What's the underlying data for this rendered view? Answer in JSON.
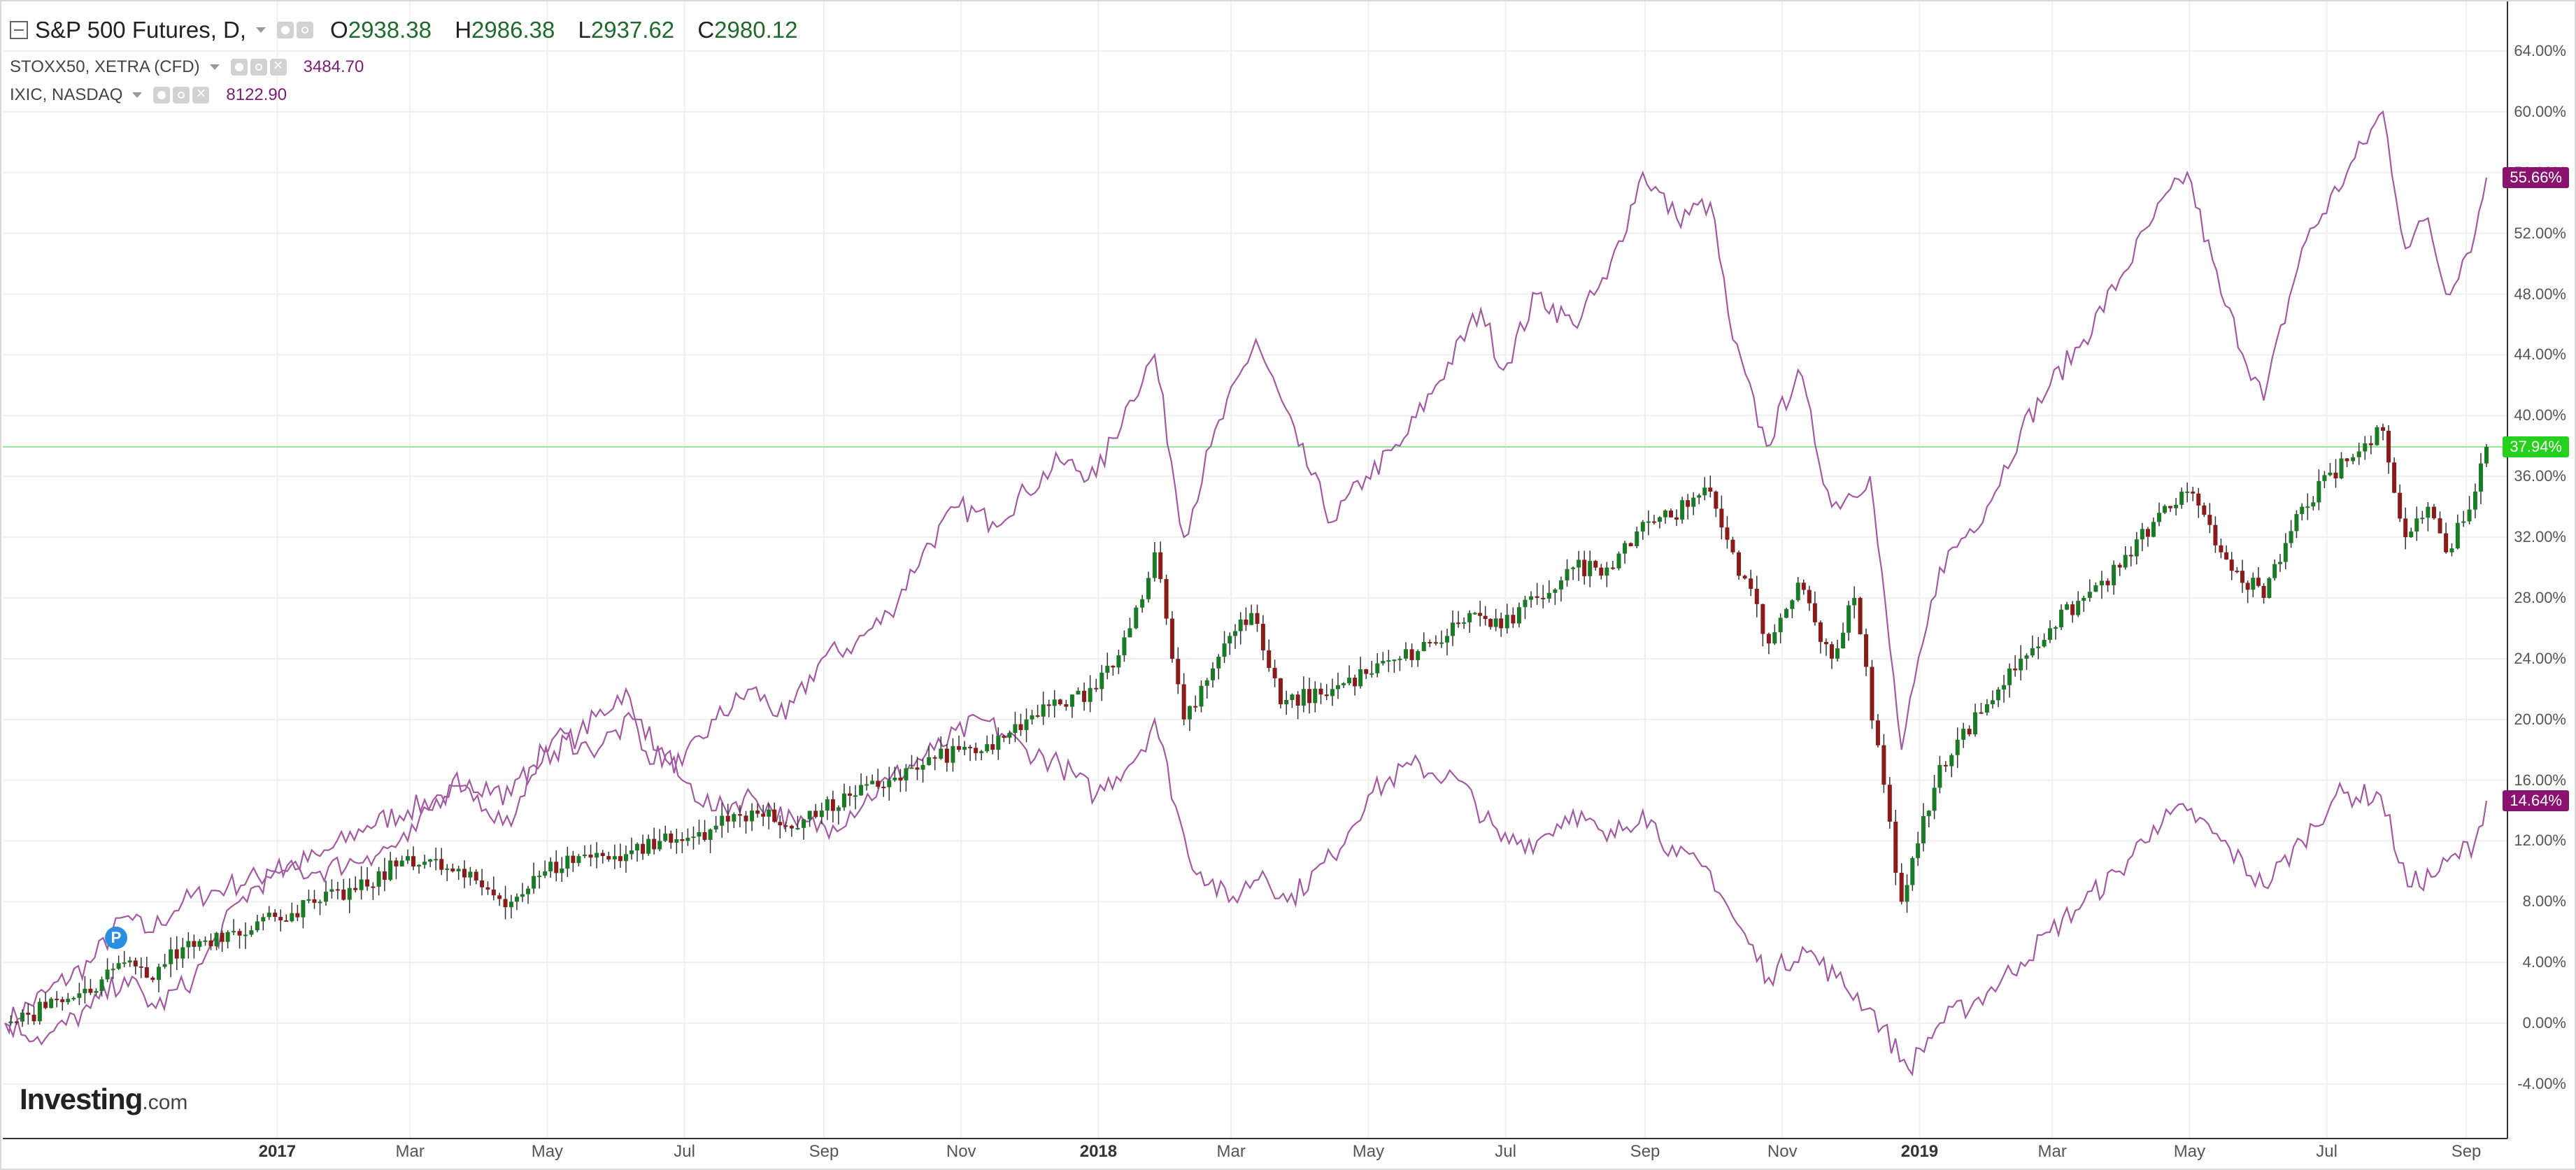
{
  "header": {
    "main_series": {
      "title": "S&P 500 Futures, D,",
      "ohlc": [
        {
          "label": "O",
          "value": "2938.38"
        },
        {
          "label": "H",
          "value": "2986.38"
        },
        {
          "label": "L",
          "value": "2937.62"
        },
        {
          "label": "C",
          "value": "2980.12"
        }
      ]
    },
    "compare_series": [
      {
        "title": "STOXX50, XETRA (CFD)",
        "value": "3484.70"
      },
      {
        "title": "IXIC, NASDAQ",
        "value": "8122.90"
      }
    ],
    "icons": [
      "eye-icon",
      "gear-icon",
      "close-icon"
    ]
  },
  "price_tags": {
    "ixic": {
      "text": "55.66%",
      "color": "#8a1370"
    },
    "spx": {
      "text": "37.94%",
      "color": "#26d11e"
    },
    "stoxx": {
      "text": "14.64%",
      "color": "#8a1370"
    }
  },
  "marker": {
    "label": "P"
  },
  "logo": {
    "text": "Investing",
    "suffix": ".com"
  },
  "chart_data": {
    "type": "line",
    "y_axis": {
      "unit": "%",
      "range": [
        -6,
        66
      ],
      "ticks": [
        "64.00%",
        "60.00%",
        "56.00%",
        "52.00%",
        "48.00%",
        "44.00%",
        "40.00%",
        "36.00%",
        "32.00%",
        "28.00%",
        "24.00%",
        "20.00%",
        "16.00%",
        "12.00%",
        "8.00%",
        "4.00%",
        "0.00%",
        "-4.00%"
      ],
      "tick_values": [
        64,
        60,
        56,
        52,
        48,
        44,
        40,
        36,
        32,
        28,
        24,
        20,
        16,
        12,
        8,
        4,
        0,
        -4
      ],
      "side": "right"
    },
    "x_axis": {
      "range": [
        "2016-09-01",
        "2019-09-10"
      ],
      "ticks": [
        {
          "label": "2017",
          "date": "2017-01-01",
          "bold": true
        },
        {
          "label": "Mar",
          "date": "2017-03-01",
          "bold": false
        },
        {
          "label": "May",
          "date": "2017-05-01",
          "bold": false
        },
        {
          "label": "Jul",
          "date": "2017-07-01",
          "bold": false
        },
        {
          "label": "Sep",
          "date": "2017-09-01",
          "bold": false
        },
        {
          "label": "Nov",
          "date": "2017-11-01",
          "bold": false
        },
        {
          "label": "2018",
          "date": "2018-01-01",
          "bold": true
        },
        {
          "label": "Mar",
          "date": "2018-03-01",
          "bold": false
        },
        {
          "label": "May",
          "date": "2018-05-01",
          "bold": false
        },
        {
          "label": "Jul",
          "date": "2018-07-01",
          "bold": false
        },
        {
          "label": "Sep",
          "date": "2018-09-01",
          "bold": false
        },
        {
          "label": "Nov",
          "date": "2018-11-01",
          "bold": false
        },
        {
          "label": "2019",
          "date": "2019-01-01",
          "bold": true
        },
        {
          "label": "Mar",
          "date": "2019-03-01",
          "bold": false
        },
        {
          "label": "May",
          "date": "2019-05-01",
          "bold": false
        },
        {
          "label": "Jul",
          "date": "2019-07-01",
          "bold": false
        },
        {
          "label": "Sep",
          "date": "2019-09-01",
          "bold": false
        }
      ]
    },
    "grid": true,
    "last_value_line": 37.94,
    "series": [
      {
        "name": "IXIC, NASDAQ",
        "color": "#a35aa3",
        "points": [
          [
            "2016-09-02",
            0
          ],
          [
            "2016-09-20",
            2
          ],
          [
            "2016-10-10",
            4
          ],
          [
            "2016-10-25",
            7
          ],
          [
            "2016-11-05",
            6
          ],
          [
            "2016-11-20",
            8
          ],
          [
            "2016-12-10",
            9
          ],
          [
            "2016-12-31",
            10
          ],
          [
            "2017-01-20",
            11
          ],
          [
            "2017-02-10",
            13
          ],
          [
            "2017-02-28",
            14
          ],
          [
            "2017-03-15",
            15
          ],
          [
            "2017-03-31",
            15
          ],
          [
            "2017-04-15",
            13
          ],
          [
            "2017-04-25",
            17
          ],
          [
            "2017-05-15",
            19
          ],
          [
            "2017-06-05",
            22
          ],
          [
            "2017-06-12",
            18
          ],
          [
            "2017-06-30",
            17
          ],
          [
            "2017-07-15",
            20
          ],
          [
            "2017-07-31",
            22
          ],
          [
            "2017-08-15",
            20
          ],
          [
            "2017-08-31",
            24
          ],
          [
            "2017-09-15",
            25
          ],
          [
            "2017-09-30",
            27
          ],
          [
            "2017-10-15",
            31
          ],
          [
            "2017-10-31",
            34
          ],
          [
            "2017-11-15",
            33
          ],
          [
            "2017-11-30",
            35
          ],
          [
            "2017-12-15",
            37
          ],
          [
            "2017-12-31",
            36
          ],
          [
            "2018-01-15",
            41
          ],
          [
            "2018-01-26",
            44
          ],
          [
            "2018-02-08",
            32
          ],
          [
            "2018-02-20",
            38
          ],
          [
            "2018-03-12",
            45
          ],
          [
            "2018-03-31",
            38
          ],
          [
            "2018-04-15",
            33
          ],
          [
            "2018-04-30",
            36
          ],
          [
            "2018-05-15",
            38
          ],
          [
            "2018-05-31",
            42
          ],
          [
            "2018-06-20",
            47
          ],
          [
            "2018-06-30",
            43
          ],
          [
            "2018-07-15",
            48
          ],
          [
            "2018-07-31",
            46
          ],
          [
            "2018-08-15",
            49
          ],
          [
            "2018-08-31",
            56
          ],
          [
            "2018-09-15",
            53
          ],
          [
            "2018-09-30",
            54
          ],
          [
            "2018-10-10",
            45
          ],
          [
            "2018-10-25",
            38
          ],
          [
            "2018-11-08",
            43
          ],
          [
            "2018-11-23",
            34
          ],
          [
            "2018-12-10",
            36
          ],
          [
            "2018-12-24",
            18
          ],
          [
            "2019-01-10",
            30
          ],
          [
            "2019-01-31",
            34
          ],
          [
            "2019-02-15",
            39
          ],
          [
            "2019-02-28",
            42
          ],
          [
            "2019-03-15",
            45
          ],
          [
            "2019-03-31",
            49
          ],
          [
            "2019-04-15",
            53
          ],
          [
            "2019-04-30",
            56
          ],
          [
            "2019-05-15",
            48
          ],
          [
            "2019-06-03",
            41
          ],
          [
            "2019-06-20",
            51
          ],
          [
            "2019-07-10",
            56
          ],
          [
            "2019-07-26",
            60
          ],
          [
            "2019-08-05",
            51
          ],
          [
            "2019-08-15",
            53
          ],
          [
            "2019-08-23",
            48
          ],
          [
            "2019-09-05",
            52
          ],
          [
            "2019-09-10",
            55.66
          ]
        ]
      },
      {
        "name": "STOXX50, XETRA (CFD)",
        "color": "#a35aa3",
        "points": [
          [
            "2016-09-02",
            0
          ],
          [
            "2016-09-20",
            -1
          ],
          [
            "2016-10-10",
            1
          ],
          [
            "2016-10-25",
            3
          ],
          [
            "2016-11-08",
            1
          ],
          [
            "2016-11-25",
            3
          ],
          [
            "2016-12-15",
            8
          ],
          [
            "2016-12-31",
            10
          ],
          [
            "2017-01-20",
            10
          ],
          [
            "2017-02-10",
            11
          ],
          [
            "2017-02-28",
            12
          ],
          [
            "2017-03-20",
            16
          ],
          [
            "2017-04-15",
            15
          ],
          [
            "2017-05-05",
            19
          ],
          [
            "2017-05-20",
            18
          ],
          [
            "2017-06-10",
            20
          ],
          [
            "2017-06-30",
            16
          ],
          [
            "2017-07-15",
            14
          ],
          [
            "2017-07-31",
            15
          ],
          [
            "2017-08-20",
            13
          ],
          [
            "2017-09-05",
            13
          ],
          [
            "2017-09-30",
            16
          ],
          [
            "2017-10-20",
            18
          ],
          [
            "2017-11-10",
            20
          ],
          [
            "2017-11-30",
            18
          ],
          [
            "2017-12-15",
            17
          ],
          [
            "2017-12-31",
            15
          ],
          [
            "2018-01-20",
            18
          ],
          [
            "2018-01-26",
            20
          ],
          [
            "2018-02-10",
            11
          ],
          [
            "2018-02-28",
            8
          ],
          [
            "2018-03-15",
            10
          ],
          [
            "2018-03-26",
            8
          ],
          [
            "2018-04-15",
            11
          ],
          [
            "2018-05-01",
            15
          ],
          [
            "2018-05-20",
            17
          ],
          [
            "2018-06-10",
            16
          ],
          [
            "2018-06-29",
            12
          ],
          [
            "2018-07-15",
            12
          ],
          [
            "2018-07-31",
            14
          ],
          [
            "2018-08-15",
            12
          ],
          [
            "2018-08-31",
            14
          ],
          [
            "2018-09-15",
            11
          ],
          [
            "2018-09-30",
            10
          ],
          [
            "2018-10-10",
            7
          ],
          [
            "2018-10-26",
            3
          ],
          [
            "2018-11-10",
            5
          ],
          [
            "2018-11-25",
            3
          ],
          [
            "2018-12-10",
            1
          ],
          [
            "2018-12-27",
            -3
          ],
          [
            "2019-01-10",
            0
          ],
          [
            "2019-01-31",
            2
          ],
          [
            "2019-02-15",
            4
          ],
          [
            "2019-02-28",
            6
          ],
          [
            "2019-03-15",
            8
          ],
          [
            "2019-03-31",
            10
          ],
          [
            "2019-04-15",
            13
          ],
          [
            "2019-04-30",
            14
          ],
          [
            "2019-05-15",
            12
          ],
          [
            "2019-06-03",
            9
          ],
          [
            "2019-06-20",
            12
          ],
          [
            "2019-07-05",
            15
          ],
          [
            "2019-07-25",
            15
          ],
          [
            "2019-08-06",
            9
          ],
          [
            "2019-08-20",
            10
          ],
          [
            "2019-09-05",
            12
          ],
          [
            "2019-09-10",
            14.64
          ]
        ]
      },
      {
        "name": "S&P 500 Futures, D,",
        "color": "#1a7a25",
        "down_color": "#8b1a1a",
        "points": [
          [
            "2016-09-02",
            0
          ],
          [
            "2016-09-20",
            1
          ],
          [
            "2016-10-10",
            2
          ],
          [
            "2016-10-25",
            4
          ],
          [
            "2016-11-04",
            3
          ],
          [
            "2016-11-20",
            5
          ],
          [
            "2016-12-10",
            6
          ],
          [
            "2016-12-31",
            7
          ],
          [
            "2017-01-20",
            8
          ],
          [
            "2017-02-10",
            9
          ],
          [
            "2017-02-28",
            11
          ],
          [
            "2017-03-20",
            10
          ],
          [
            "2017-04-15",
            8
          ],
          [
            "2017-04-30",
            10
          ],
          [
            "2017-05-15",
            11
          ],
          [
            "2017-05-31",
            11
          ],
          [
            "2017-06-20",
            12
          ],
          [
            "2017-06-30",
            12
          ],
          [
            "2017-07-15",
            13
          ],
          [
            "2017-07-31",
            14
          ],
          [
            "2017-08-15",
            13
          ],
          [
            "2017-08-31",
            14
          ],
          [
            "2017-09-15",
            15
          ],
          [
            "2017-09-30",
            16
          ],
          [
            "2017-10-15",
            17
          ],
          [
            "2017-10-31",
            18
          ],
          [
            "2017-11-15",
            18
          ],
          [
            "2017-11-30",
            20
          ],
          [
            "2017-12-15",
            21
          ],
          [
            "2017-12-31",
            22
          ],
          [
            "2018-01-15",
            26
          ],
          [
            "2018-01-26",
            31
          ],
          [
            "2018-02-08",
            20
          ],
          [
            "2018-02-26",
            25
          ],
          [
            "2018-03-10",
            27
          ],
          [
            "2018-03-23",
            21
          ],
          [
            "2018-04-15",
            22
          ],
          [
            "2018-04-30",
            23
          ],
          [
            "2018-05-15",
            24
          ],
          [
            "2018-05-31",
            25
          ],
          [
            "2018-06-15",
            27
          ],
          [
            "2018-06-29",
            26
          ],
          [
            "2018-07-15",
            28
          ],
          [
            "2018-07-31",
            30
          ],
          [
            "2018-08-15",
            30
          ],
          [
            "2018-08-31",
            33
          ],
          [
            "2018-09-20",
            34
          ],
          [
            "2018-09-30",
            35
          ],
          [
            "2018-10-10",
            31
          ],
          [
            "2018-10-26",
            25
          ],
          [
            "2018-11-08",
            29
          ],
          [
            "2018-11-23",
            24
          ],
          [
            "2018-12-03",
            28
          ],
          [
            "2018-12-24",
            8
          ],
          [
            "2019-01-10",
            17
          ],
          [
            "2019-01-31",
            21
          ],
          [
            "2019-02-15",
            24
          ],
          [
            "2019-02-28",
            26
          ],
          [
            "2019-03-15",
            28
          ],
          [
            "2019-03-31",
            30
          ],
          [
            "2019-04-15",
            33
          ],
          [
            "2019-04-30",
            35
          ],
          [
            "2019-05-15",
            31
          ],
          [
            "2019-06-03",
            28
          ],
          [
            "2019-06-20",
            34
          ],
          [
            "2019-07-10",
            37
          ],
          [
            "2019-07-26",
            39
          ],
          [
            "2019-08-05",
            32
          ],
          [
            "2019-08-15",
            34
          ],
          [
            "2019-08-23",
            31
          ],
          [
            "2019-09-05",
            35
          ],
          [
            "2019-09-10",
            37.94
          ]
        ]
      }
    ]
  }
}
